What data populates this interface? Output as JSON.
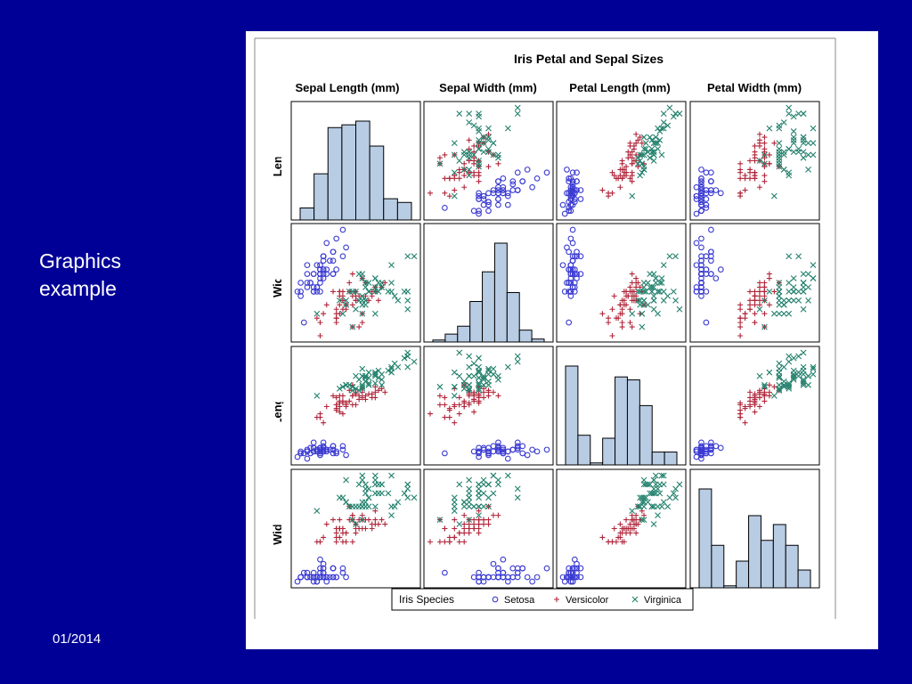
{
  "slide": {
    "side_text": [
      "Graphics",
      "example"
    ],
    "date": "01/2014",
    "background_color": "#000096"
  },
  "colors": {
    "setosa": "#3a3ad2",
    "versicolor": "#b0263a",
    "virginica": "#21806c",
    "histogram_fill": "#b8cce4"
  },
  "chart_data": {
    "type": "scatter",
    "chart_kind": "scatter-plot-matrix",
    "title": "Iris Petal and Sepal Sizes",
    "variables": [
      "Sepal Length (mm)",
      "Sepal Width (mm)",
      "Petal Length (mm)",
      "Petal Width (mm)"
    ],
    "row_labels": [
      "Sepal Length (m...",
      "Sepal Width (mm)",
      "Petal Length (mm)",
      "Petal Width (mm)"
    ],
    "ranges": [
      [
        43,
        79
      ],
      [
        20,
        44
      ],
      [
        10,
        69
      ],
      [
        1,
        25
      ]
    ],
    "diagonal": "histogram",
    "histograms": [
      {
        "variable": "Sepal Length (mm)",
        "bins": 8,
        "relative_heights": [
          0.13,
          0.5,
          1.0,
          1.03,
          1.07,
          0.8,
          0.23,
          0.19
        ]
      },
      {
        "variable": "Sepal Width (mm)",
        "bins": 9,
        "relative_heights": [
          0.02,
          0.08,
          0.16,
          0.41,
          0.71,
          1.0,
          0.5,
          0.12,
          0.03
        ]
      },
      {
        "variable": "Petal Length (mm)",
        "bins": 9,
        "relative_heights": [
          1.0,
          0.3,
          0.02,
          0.27,
          0.89,
          0.86,
          0.6,
          0.13,
          0.13
        ]
      },
      {
        "variable": "Petal Width (mm)",
        "bins": 9,
        "relative_heights": [
          1.0,
          0.43,
          0.02,
          0.27,
          0.73,
          0.48,
          0.64,
          0.43,
          0.18
        ]
      }
    ],
    "series": [
      {
        "name": "Setosa",
        "marker": "circle",
        "x_var": "Sepal Length (mm)",
        "y_var": "Petal Width (mm)",
        "points": [
          [
            51,
            35,
            14,
            2
          ],
          [
            49,
            30,
            14,
            2
          ],
          [
            47,
            32,
            13,
            2
          ],
          [
            46,
            31,
            15,
            2
          ],
          [
            50,
            36,
            14,
            2
          ],
          [
            54,
            39,
            17,
            4
          ],
          [
            46,
            34,
            14,
            3
          ],
          [
            50,
            34,
            15,
            2
          ],
          [
            44,
            29,
            14,
            2
          ],
          [
            49,
            31,
            15,
            1
          ],
          [
            54,
            37,
            15,
            2
          ],
          [
            48,
            34,
            16,
            2
          ],
          [
            48,
            30,
            14,
            1
          ],
          [
            43,
            30,
            11,
            1
          ],
          [
            58,
            40,
            12,
            2
          ],
          [
            57,
            44,
            15,
            4
          ],
          [
            54,
            39,
            13,
            4
          ],
          [
            51,
            35,
            14,
            3
          ],
          [
            57,
            38,
            17,
            3
          ],
          [
            51,
            38,
            15,
            3
          ],
          [
            54,
            34,
            17,
            2
          ],
          [
            51,
            37,
            15,
            4
          ],
          [
            46,
            36,
            10,
            2
          ],
          [
            51,
            33,
            17,
            5
          ],
          [
            48,
            34,
            19,
            2
          ],
          [
            50,
            30,
            16,
            2
          ],
          [
            50,
            34,
            16,
            4
          ],
          [
            52,
            35,
            15,
            2
          ],
          [
            52,
            34,
            14,
            2
          ],
          [
            47,
            32,
            16,
            2
          ],
          [
            48,
            31,
            16,
            2
          ],
          [
            54,
            34,
            15,
            4
          ],
          [
            52,
            41,
            15,
            1
          ],
          [
            55,
            42,
            14,
            2
          ],
          [
            49,
            31,
            15,
            2
          ],
          [
            50,
            32,
            12,
            2
          ],
          [
            55,
            35,
            13,
            2
          ],
          [
            49,
            36,
            14,
            1
          ],
          [
            44,
            30,
            13,
            2
          ],
          [
            51,
            34,
            15,
            2
          ],
          [
            50,
            35,
            13,
            3
          ],
          [
            45,
            23,
            13,
            3
          ],
          [
            44,
            32,
            13,
            2
          ],
          [
            50,
            35,
            16,
            6
          ],
          [
            51,
            38,
            19,
            4
          ],
          [
            48,
            30,
            14,
            3
          ],
          [
            51,
            38,
            16,
            2
          ],
          [
            46,
            32,
            14,
            2
          ],
          [
            53,
            37,
            15,
            2
          ],
          [
            50,
            33,
            14,
            2
          ]
        ]
      },
      {
        "name": "Versicolor",
        "marker": "plus",
        "points": [
          [
            70,
            32,
            47,
            14
          ],
          [
            64,
            32,
            45,
            15
          ],
          [
            69,
            31,
            49,
            15
          ],
          [
            55,
            23,
            40,
            13
          ],
          [
            65,
            28,
            46,
            15
          ],
          [
            57,
            28,
            45,
            13
          ],
          [
            63,
            33,
            47,
            16
          ],
          [
            49,
            24,
            33,
            10
          ],
          [
            66,
            29,
            46,
            13
          ],
          [
            52,
            27,
            39,
            14
          ],
          [
            50,
            20,
            35,
            10
          ],
          [
            59,
            30,
            42,
            15
          ],
          [
            60,
            22,
            40,
            10
          ],
          [
            61,
            29,
            47,
            14
          ],
          [
            56,
            29,
            36,
            13
          ],
          [
            67,
            31,
            44,
            14
          ],
          [
            56,
            30,
            45,
            15
          ],
          [
            58,
            27,
            41,
            10
          ],
          [
            62,
            22,
            45,
            15
          ],
          [
            56,
            25,
            39,
            11
          ],
          [
            59,
            32,
            48,
            18
          ],
          [
            61,
            28,
            40,
            13
          ],
          [
            63,
            25,
            49,
            15
          ],
          [
            61,
            28,
            47,
            12
          ],
          [
            64,
            29,
            43,
            13
          ],
          [
            66,
            30,
            44,
            14
          ],
          [
            68,
            28,
            48,
            14
          ],
          [
            67,
            30,
            50,
            17
          ],
          [
            60,
            29,
            45,
            15
          ],
          [
            57,
            26,
            35,
            10
          ],
          [
            55,
            24,
            38,
            11
          ],
          [
            55,
            24,
            37,
            10
          ],
          [
            58,
            27,
            39,
            12
          ],
          [
            60,
            27,
            51,
            16
          ],
          [
            54,
            30,
            45,
            15
          ],
          [
            60,
            34,
            45,
            16
          ],
          [
            67,
            31,
            47,
            15
          ],
          [
            63,
            23,
            44,
            13
          ],
          [
            56,
            30,
            41,
            13
          ],
          [
            55,
            25,
            40,
            13
          ],
          [
            55,
            26,
            44,
            12
          ],
          [
            61,
            30,
            46,
            14
          ],
          [
            58,
            26,
            40,
            12
          ],
          [
            50,
            23,
            33,
            10
          ],
          [
            56,
            27,
            42,
            13
          ],
          [
            57,
            30,
            42,
            12
          ],
          [
            57,
            29,
            42,
            13
          ],
          [
            62,
            29,
            43,
            13
          ],
          [
            51,
            25,
            30,
            11
          ],
          [
            57,
            28,
            41,
            13
          ]
        ]
      },
      {
        "name": "Virginica",
        "marker": "x",
        "points": [
          [
            63,
            33,
            60,
            25
          ],
          [
            58,
            27,
            51,
            19
          ],
          [
            71,
            30,
            59,
            21
          ],
          [
            63,
            29,
            56,
            18
          ],
          [
            65,
            30,
            58,
            22
          ],
          [
            76,
            30,
            66,
            21
          ],
          [
            49,
            25,
            45,
            17
          ],
          [
            73,
            29,
            63,
            18
          ],
          [
            67,
            25,
            58,
            18
          ],
          [
            72,
            36,
            61,
            25
          ],
          [
            65,
            32,
            51,
            20
          ],
          [
            64,
            27,
            53,
            19
          ],
          [
            68,
            30,
            55,
            21
          ],
          [
            57,
            25,
            50,
            20
          ],
          [
            58,
            28,
            51,
            24
          ],
          [
            64,
            32,
            53,
            23
          ],
          [
            65,
            30,
            55,
            18
          ],
          [
            77,
            38,
            67,
            22
          ],
          [
            77,
            26,
            69,
            23
          ],
          [
            60,
            22,
            50,
            15
          ],
          [
            69,
            32,
            57,
            23
          ],
          [
            56,
            28,
            49,
            20
          ],
          [
            77,
            28,
            67,
            20
          ],
          [
            63,
            27,
            49,
            18
          ],
          [
            67,
            33,
            57,
            21
          ],
          [
            72,
            32,
            60,
            18
          ],
          [
            62,
            28,
            48,
            18
          ],
          [
            61,
            30,
            49,
            18
          ],
          [
            64,
            28,
            56,
            21
          ],
          [
            72,
            30,
            58,
            16
          ],
          [
            74,
            28,
            61,
            19
          ],
          [
            79,
            38,
            64,
            20
          ],
          [
            64,
            28,
            56,
            22
          ],
          [
            63,
            28,
            51,
            15
          ],
          [
            61,
            26,
            56,
            14
          ],
          [
            77,
            30,
            61,
            23
          ],
          [
            63,
            34,
            56,
            24
          ],
          [
            64,
            31,
            55,
            18
          ],
          [
            60,
            30,
            48,
            18
          ],
          [
            69,
            31,
            54,
            21
          ],
          [
            67,
            31,
            56,
            24
          ],
          [
            69,
            31,
            51,
            23
          ],
          [
            58,
            27,
            51,
            19
          ],
          [
            68,
            32,
            59,
            23
          ],
          [
            67,
            33,
            57,
            25
          ],
          [
            67,
            30,
            52,
            23
          ],
          [
            63,
            25,
            50,
            19
          ],
          [
            65,
            30,
            52,
            20
          ],
          [
            62,
            34,
            54,
            23
          ],
          [
            59,
            30,
            51,
            18
          ]
        ]
      }
    ],
    "point_order": [
      "Sepal Length (mm)",
      "Sepal Width (mm)",
      "Petal Length (mm)",
      "Petal Width (mm)"
    ],
    "legend": {
      "title": "Iris Species",
      "entries": [
        "Setosa",
        "Versicolor",
        "Virginica"
      ],
      "position": "bottom"
    },
    "grid": false
  }
}
